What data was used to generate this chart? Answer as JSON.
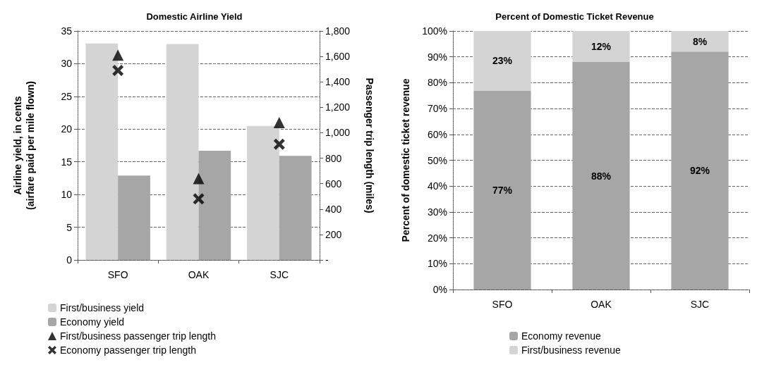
{
  "chart_data": [
    {
      "type": "bar",
      "title": "Domestic Airline Yield",
      "ylabel": "Airline yield, in cents\n(airfare paid per mile flown)",
      "y2label": "Passenger trip length (miles)",
      "categories": [
        "SFO",
        "OAK",
        "SJC"
      ],
      "series": [
        {
          "name": "First/business yield",
          "color": "#d4d4d4",
          "values": [
            33.1,
            33.0,
            20.5
          ]
        },
        {
          "name": "Economy yield",
          "color": "#a6a6a6",
          "values": [
            12.9,
            16.7,
            15.9
          ]
        },
        {
          "name": "First/business passenger trip length",
          "type": "scatter",
          "axis": "y2",
          "marker": "triangle",
          "color": "#000000",
          "values": [
            1610,
            640,
            1080
          ]
        },
        {
          "name": "Economy passenger trip length",
          "type": "scatter",
          "axis": "y2",
          "marker": "cross",
          "color": "#000000",
          "values": [
            1490,
            480,
            910
          ]
        }
      ],
      "ylim": [
        0,
        35
      ],
      "yticks": [
        0,
        5,
        10,
        15,
        20,
        25,
        30,
        35
      ],
      "y2lim": [
        0,
        1800
      ],
      "y2ticks": [
        {
          "value": 0,
          "label": "-"
        },
        {
          "value": 200,
          "label": "200"
        },
        {
          "value": 400,
          "label": "400"
        },
        {
          "value": 600,
          "label": "600"
        },
        {
          "value": 800,
          "label": "800"
        },
        {
          "value": 1000,
          "label": "1,000"
        },
        {
          "value": 1200,
          "label": "1,200"
        },
        {
          "value": 1400,
          "label": "1,400"
        },
        {
          "value": 1600,
          "label": "1,600"
        },
        {
          "value": 1800,
          "label": "1,800"
        }
      ],
      "grid": "y",
      "legend": "bottom left"
    },
    {
      "type": "bar",
      "title": "Percent of Domestic Ticket Revenue",
      "ylabel": "Percent of domestic ticket revenue",
      "categories": [
        "SFO",
        "OAK",
        "SJC"
      ],
      "stacked": true,
      "series": [
        {
          "name": "Economy revenue",
          "color": "#a6a6a6",
          "values": [
            77,
            88,
            92
          ],
          "value_labels": [
            "77%",
            "88%",
            "92%"
          ]
        },
        {
          "name": "First/business revenue",
          "color": "#d4d4d4",
          "values": [
            23,
            12,
            8
          ],
          "value_labels": [
            "23%",
            "12%",
            "8%"
          ]
        }
      ],
      "ylim": [
        0,
        100
      ],
      "yticks": [
        {
          "value": 0,
          "label": "0%"
        },
        {
          "value": 10,
          "label": "10%"
        },
        {
          "value": 20,
          "label": "20%"
        },
        {
          "value": 30,
          "label": "30%"
        },
        {
          "value": 40,
          "label": "40%"
        },
        {
          "value": 50,
          "label": "50%"
        },
        {
          "value": 60,
          "label": "60%"
        },
        {
          "value": 70,
          "label": "70%"
        },
        {
          "value": 80,
          "label": "80%"
        },
        {
          "value": 90,
          "label": "90%"
        },
        {
          "value": 100,
          "label": "100%"
        }
      ],
      "grid": "y",
      "legend": "bottom"
    }
  ]
}
